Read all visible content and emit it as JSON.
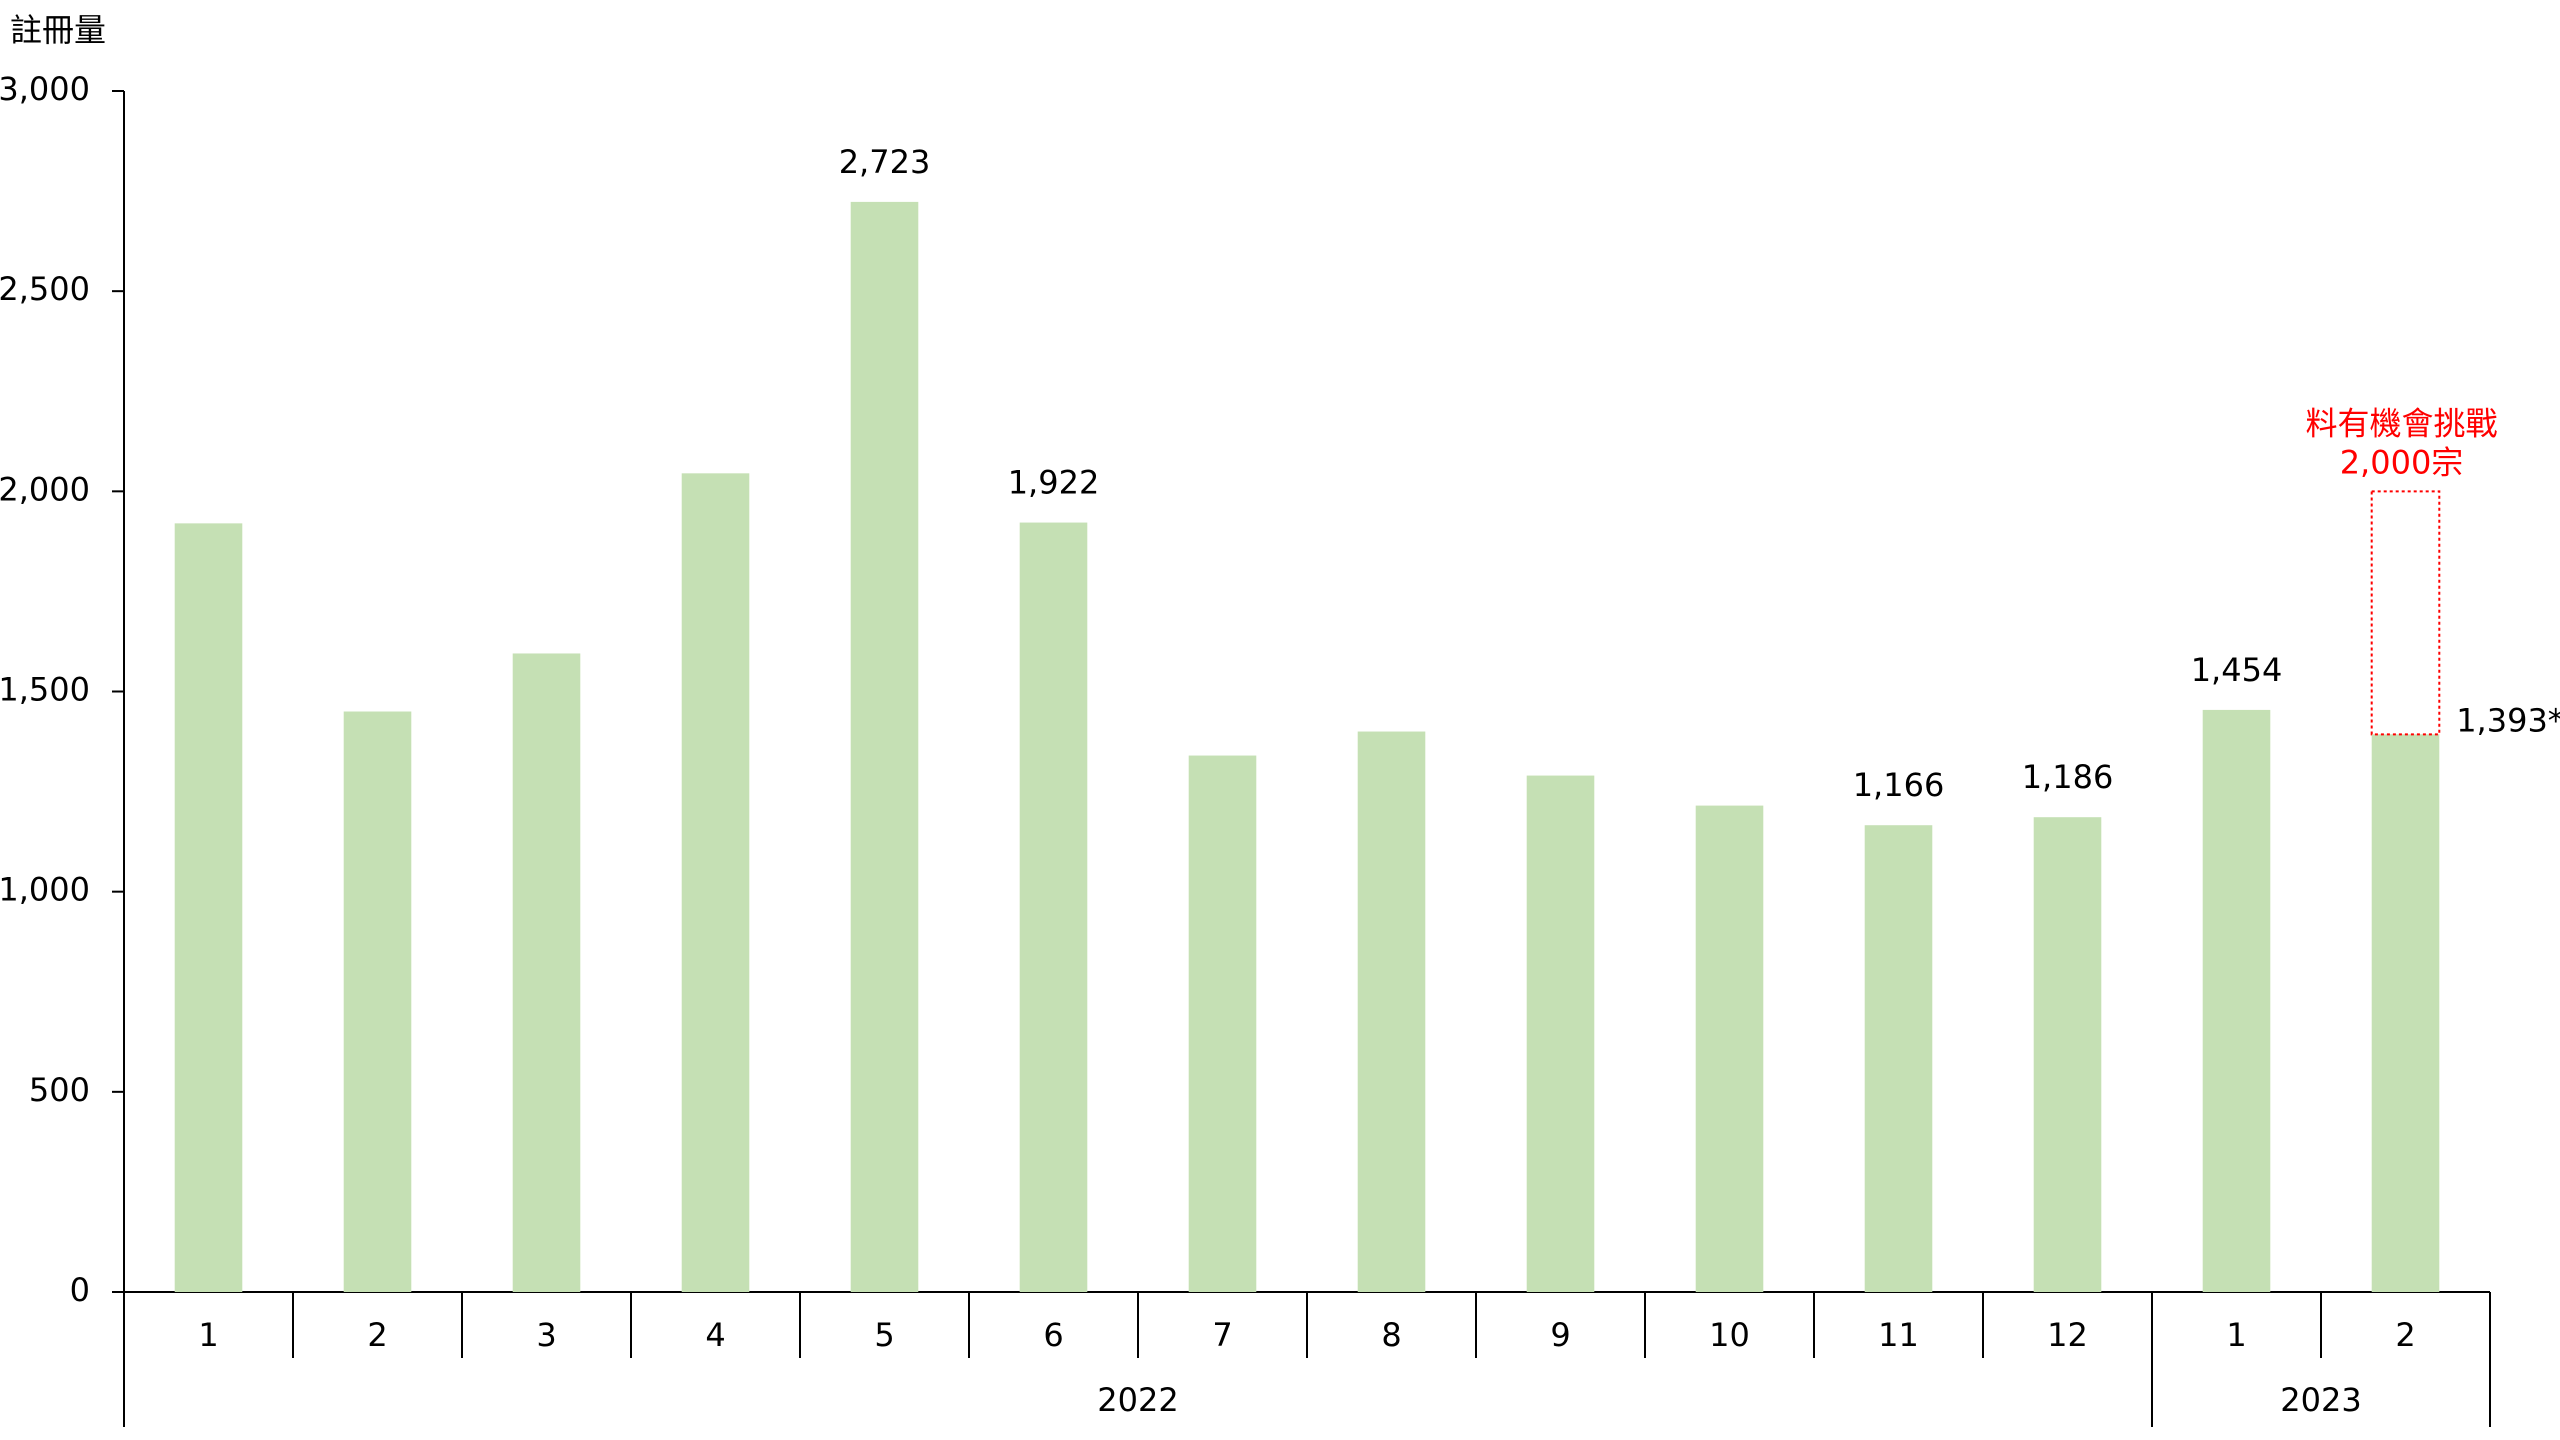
{
  "chart_data": {
    "type": "bar",
    "y_label": "註冊量",
    "groups": [
      {
        "label": "2022",
        "categories": [
          "1",
          "2",
          "3",
          "4",
          "5",
          "6",
          "7",
          "8",
          "9",
          "10",
          "11",
          "12"
        ]
      },
      {
        "label": "2023",
        "categories": [
          "1",
          "2"
        ]
      }
    ],
    "values": [
      1920,
      1450,
      1595,
      2045,
      2723,
      1922,
      1340,
      1400,
      1290,
      1215,
      1166,
      1186,
      1454,
      1393
    ],
    "value_labels": [
      null,
      null,
      null,
      null,
      "2,723",
      "1,922",
      null,
      null,
      null,
      null,
      "1,166",
      "1,186",
      "1,454",
      "1,393*"
    ],
    "color": "#c5e0b4",
    "ylim": [
      0,
      3000
    ],
    "yticks": [
      0,
      500,
      {
        "value": 1000,
        "label": "1,000"
      },
      {
        "value": 1500,
        "label": "1,500"
      },
      {
        "value": 2000,
        "label": "2,000"
      },
      {
        "value": 2500,
        "label": "2,500"
      },
      {
        "value": 3000,
        "label": "3,000"
      }
    ],
    "annotation": {
      "lines": [
        "料有機會挑戰",
        "2,000宗"
      ],
      "target": 2000,
      "color": "#ff0000"
    }
  }
}
